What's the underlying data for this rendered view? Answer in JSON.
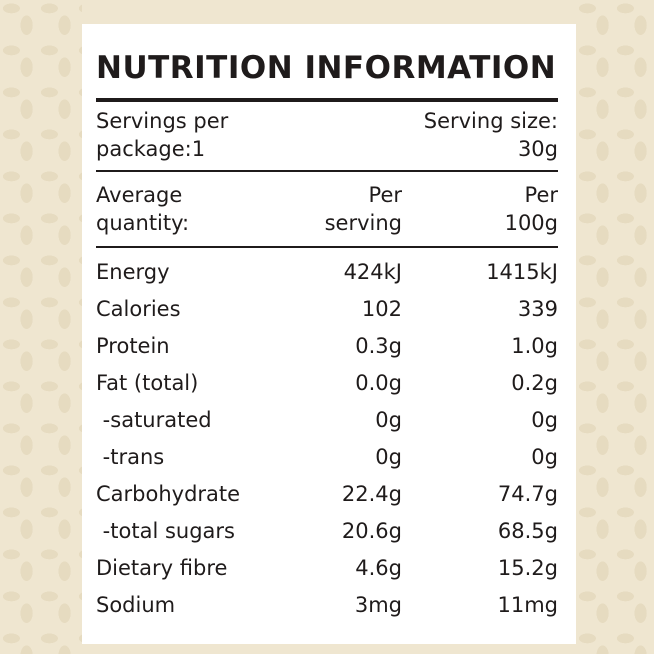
{
  "title": "NUTRITION INFORMATION",
  "servings": {
    "line1": "Servings per",
    "line2": "package:1",
    "size_line1": "Serving size:",
    "size_line2": "30g"
  },
  "header": {
    "col0_line1": "Average",
    "col0_line2": "quantity:",
    "col1_line1": "Per",
    "col1_line2": "serving",
    "col2_line1": "Per",
    "col2_line2": "100g"
  },
  "rows": [
    {
      "label": "Energy",
      "per_serving": "424kJ",
      "per_100g": "1415kJ"
    },
    {
      "label": "Calories",
      "per_serving": "102",
      "per_100g": "339"
    },
    {
      "label": "Protein",
      "per_serving": "0.3g",
      "per_100g": "1.0g"
    },
    {
      "label": "Fat (total)",
      "per_serving": "0.0g",
      "per_100g": "0.2g"
    },
    {
      "label": " -saturated",
      "per_serving": "0g",
      "per_100g": "0g"
    },
    {
      "label": " -trans",
      "per_serving": "0g",
      "per_100g": "0g"
    },
    {
      "label": "Carbohydrate",
      "per_serving": "22.4g",
      "per_100g": "74.7g"
    },
    {
      "label": " -total sugars",
      "per_serving": "20.6g",
      "per_100g": "68.5g"
    },
    {
      "label": "Dietary fibre",
      "per_serving": "4.6g",
      "per_100g": "15.2g"
    },
    {
      "label": "Sodium",
      "per_serving": "3mg",
      "per_100g": "11mg"
    }
  ]
}
